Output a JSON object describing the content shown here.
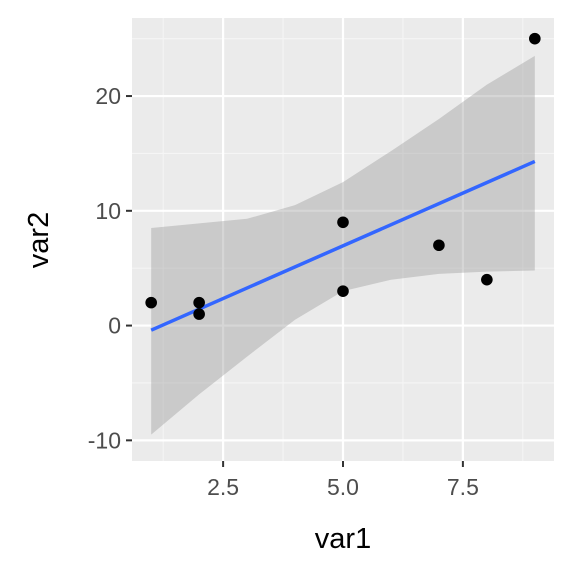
{
  "chart_data": {
    "type": "scatter",
    "xlabel": "var1",
    "ylabel": "var2",
    "xlim": [
      0.6,
      9.4
    ],
    "ylim": [
      -11.8,
      26.8
    ],
    "x_ticks": [
      2.5,
      5.0,
      7.5
    ],
    "x_tick_labels": [
      "2.5",
      "5.0",
      "7.5"
    ],
    "y_ticks": [
      -10,
      0,
      10,
      20
    ],
    "y_tick_labels": [
      "-10",
      "0",
      "10",
      "20"
    ],
    "x_minor_ticks": [
      1.25,
      3.75,
      6.25,
      8.75
    ],
    "y_minor_ticks": [
      -5,
      5,
      15,
      25
    ],
    "grid": true,
    "points": [
      {
        "x": 1,
        "y": 2
      },
      {
        "x": 2,
        "y": 2
      },
      {
        "x": 2,
        "y": 1
      },
      {
        "x": 5,
        "y": 9
      },
      {
        "x": 5,
        "y": 3
      },
      {
        "x": 7,
        "y": 7
      },
      {
        "x": 8,
        "y": 4
      },
      {
        "x": 9,
        "y": 25
      }
    ],
    "trend": {
      "method": "linear",
      "x": [
        1,
        9
      ],
      "y": [
        -0.4,
        14.3
      ]
    },
    "confidence_band": {
      "x": [
        1,
        2,
        3,
        4,
        5,
        6,
        7,
        8,
        9
      ],
      "lower": [
        -9.5,
        -6.0,
        -2.7,
        0.5,
        3.0,
        4.0,
        4.5,
        4.7,
        4.8
      ],
      "upper": [
        8.5,
        8.9,
        9.3,
        10.5,
        12.5,
        15.2,
        18.0,
        21.0,
        23.5
      ]
    },
    "colors": {
      "panel_background": "#ebebeb",
      "grid_major": "#ffffff",
      "grid_minor": "#f5f5f5",
      "point": "#000000",
      "trend_line": "#3366ff",
      "band": "#999999",
      "tick_text": "#4d4d4d",
      "axis_title": "#000000"
    }
  }
}
